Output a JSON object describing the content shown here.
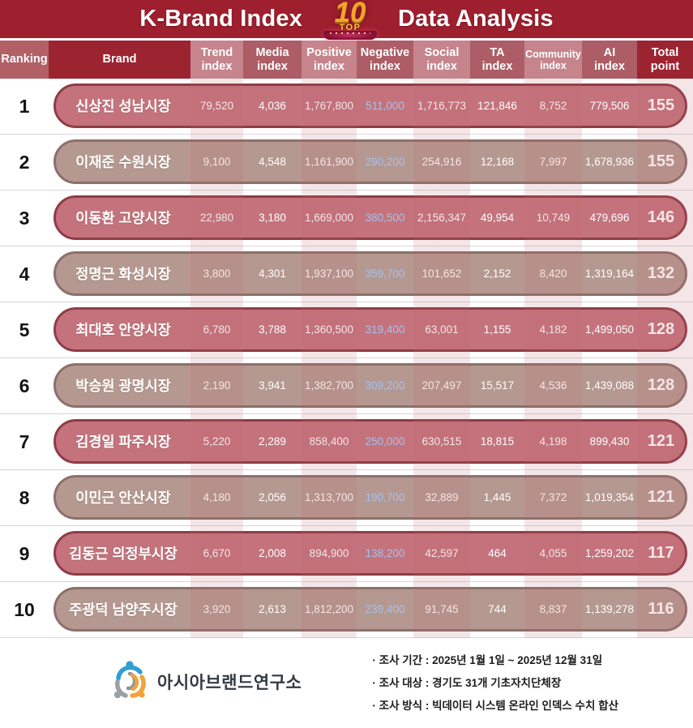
{
  "title": {
    "left": "K-Brand Index",
    "right": "Data Analysis",
    "badge_number": "10",
    "badge_top": "TOP"
  },
  "table": {
    "columns": [
      {
        "label": "Ranking",
        "shade": "rank"
      },
      {
        "label": "Brand",
        "shade": "dark"
      },
      {
        "label": "Trend\nindex",
        "shade": "light"
      },
      {
        "label": "Media\nindex",
        "shade": "mid"
      },
      {
        "label": "Positive\nindex",
        "shade": "light"
      },
      {
        "label": "Negative\nindex",
        "shade": "mid"
      },
      {
        "label": "Social\nindex",
        "shade": "light"
      },
      {
        "label": "TA\nindex",
        "shade": "mid"
      },
      {
        "label": "Community\nindex",
        "shade": "light"
      },
      {
        "label": "AI\nindex",
        "shade": "mid"
      },
      {
        "label": "Total\npoint",
        "shade": "dark"
      }
    ],
    "value_names": [
      "trend-index-value",
      "media-index-value",
      "positive-index-value",
      "negative-index-value",
      "social-index-value",
      "ta-index-value",
      "community-index-value",
      "ai-index-value"
    ],
    "negative_value_index": 3,
    "rows": [
      {
        "rank": "1",
        "brand": "신상진 성남시장",
        "values": [
          "79,520",
          "4,036",
          "1,767,800",
          "511,000",
          "1,716,773",
          "121,846",
          "8,752",
          "779,506"
        ],
        "total": "155",
        "theme": "rose"
      },
      {
        "rank": "2",
        "brand": "이재준 수원시장",
        "values": [
          "9,100",
          "4,548",
          "1,161,900",
          "290,200",
          "254,916",
          "12,168",
          "7,997",
          "1,678,936"
        ],
        "total": "155",
        "theme": "taupe"
      },
      {
        "rank": "3",
        "brand": "이동환 고양시장",
        "values": [
          "22,980",
          "3,180",
          "1,669,000",
          "380,500",
          "2,156,347",
          "49,954",
          "10,749",
          "479,696"
        ],
        "total": "146",
        "theme": "rose"
      },
      {
        "rank": "4",
        "brand": "정명근 화성시장",
        "values": [
          "3,800",
          "4,301",
          "1,937,100",
          "359,700",
          "101,652",
          "2,152",
          "8,420",
          "1,319,164"
        ],
        "total": "132",
        "theme": "taupe"
      },
      {
        "rank": "5",
        "brand": "최대호 안양시장",
        "values": [
          "6,780",
          "3,788",
          "1,360,500",
          "319,400",
          "63,001",
          "1,155",
          "4,182",
          "1,499,050"
        ],
        "total": "128",
        "theme": "rose"
      },
      {
        "rank": "6",
        "brand": "박승원 광명시장",
        "values": [
          "2,190",
          "3,941",
          "1,382,700",
          "309,200",
          "207,497",
          "15,517",
          "4,536",
          "1,439,088"
        ],
        "total": "128",
        "theme": "taupe"
      },
      {
        "rank": "7",
        "brand": "김경일 파주시장",
        "values": [
          "5,220",
          "2,289",
          "858,400",
          "250,000",
          "630,515",
          "18,815",
          "4,198",
          "899,430"
        ],
        "total": "121",
        "theme": "rose"
      },
      {
        "rank": "8",
        "brand": "이민근 안산시장",
        "values": [
          "4,180",
          "2,056",
          "1,313,700",
          "190,700",
          "32,889",
          "1,445",
          "7,372",
          "1,019,354"
        ],
        "total": "121",
        "theme": "taupe"
      },
      {
        "rank": "9",
        "brand": "김동근 의정부시장",
        "values": [
          "6,670",
          "2,008",
          "894,900",
          "138,200",
          "42,597",
          "464",
          "4,055",
          "1,259,202"
        ],
        "total": "117",
        "theme": "rose"
      },
      {
        "rank": "10",
        "brand": "주광덕 남양주시장",
        "values": [
          "3,920",
          "2,613",
          "1,812,200",
          "239,400",
          "91,745",
          "744",
          "8,837",
          "1,139,278"
        ],
        "total": "116",
        "theme": "taupe"
      }
    ]
  },
  "footer": {
    "org": "아시아브랜드연구소",
    "notes": [
      "· 조사 기간 : 2025년 1월 1일 ~ 2025년 12월 31일",
      "· 조사 대상 : 경기도 31개 기초자치단체장",
      "· 조사 방식 : 빅데이터 시스템 온라인 인덱스 수치 합산"
    ]
  },
  "colors": {
    "topbar": "#9e1f2e",
    "header_dark": "#9c2430",
    "header_ranking": "#b25f66",
    "header_light": "#c6858c",
    "header_mid": "#ad5d65",
    "pill_rose": "#c4737c",
    "pill_rose_border": "#8e3c46",
    "pill_taupe": "#b5988f",
    "pill_taupe_border": "#8c706a",
    "negative_value": "#a6c2ee",
    "gold_badge": "#f3a42b"
  },
  "chart_data": {
    "type": "table",
    "title": "K-Brand Index TOP 10 Data Analysis",
    "columns": [
      "Ranking",
      "Brand",
      "Trend index",
      "Media index",
      "Positive index",
      "Negative index",
      "Social index",
      "TA index",
      "Community index",
      "AI index",
      "Total point"
    ],
    "rows": [
      [
        1,
        "신상진 성남시장",
        79520,
        4036,
        1767800,
        511000,
        1716773,
        121846,
        8752,
        779506,
        155
      ],
      [
        2,
        "이재준 수원시장",
        9100,
        4548,
        1161900,
        290200,
        254916,
        12168,
        7997,
        1678936,
        155
      ],
      [
        3,
        "이동환 고양시장",
        22980,
        3180,
        1669000,
        380500,
        2156347,
        49954,
        10749,
        479696,
        146
      ],
      [
        4,
        "정명근 화성시장",
        3800,
        4301,
        1937100,
        359700,
        101652,
        2152,
        8420,
        1319164,
        132
      ],
      [
        5,
        "최대호 안양시장",
        6780,
        3788,
        1360500,
        319400,
        63001,
        1155,
        4182,
        1499050,
        128
      ],
      [
        6,
        "박승원 광명시장",
        2190,
        3941,
        1382700,
        309200,
        207497,
        15517,
        4536,
        1439088,
        128
      ],
      [
        7,
        "김경일 파주시장",
        5220,
        2289,
        858400,
        250000,
        630515,
        18815,
        4198,
        899430,
        121
      ],
      [
        8,
        "이민근 안산시장",
        4180,
        2056,
        1313700,
        190700,
        32889,
        1445,
        7372,
        1019354,
        121
      ],
      [
        9,
        "김동근 의정부시장",
        6670,
        2008,
        894900,
        138200,
        42597,
        464,
        4055,
        1259202,
        117
      ],
      [
        10,
        "주광덕 남양주시장",
        3920,
        2613,
        1812200,
        239400,
        91745,
        744,
        8837,
        1139278,
        116
      ]
    ]
  }
}
